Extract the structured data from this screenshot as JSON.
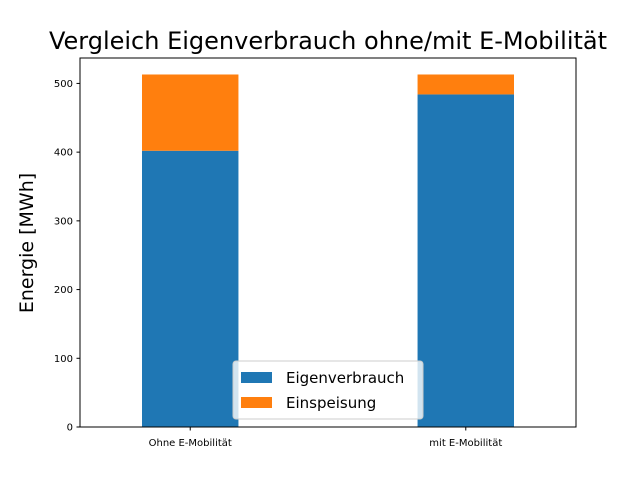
{
  "chart_data": {
    "type": "bar",
    "stacked": true,
    "title": "Vergleich Eigenverbrauch ohne/mit E-Mobilität",
    "xlabel": "",
    "ylabel": "Energie [MWh]",
    "categories": [
      "Ohne E-Mobilität",
      "mit E-Mobilität"
    ],
    "series": [
      {
        "name": "Eigenverbrauch",
        "values": [
          402,
          484
        ],
        "color": "#1f77b4"
      },
      {
        "name": "Einspeisung",
        "values": [
          111,
          29
        ],
        "color": "#ff7f0e"
      }
    ],
    "ylim": [
      0,
      537
    ],
    "yticks": [
      0,
      100,
      200,
      300,
      400,
      500
    ],
    "grid": false,
    "legend_position": "bottom-center"
  }
}
